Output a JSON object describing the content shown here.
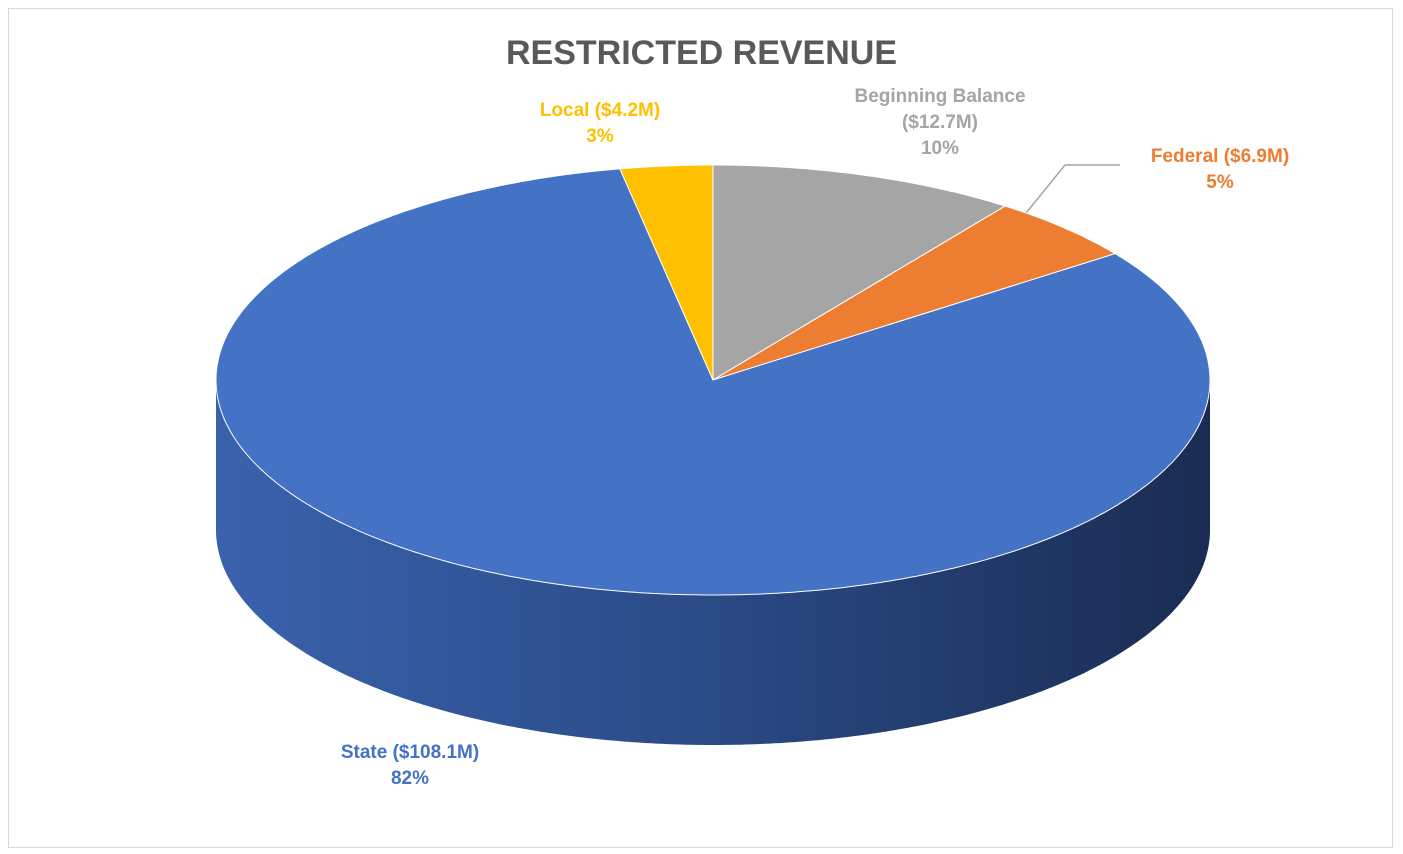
{
  "chart_data": {
    "type": "pie",
    "title": "RESTRICTED REVENUE",
    "categories": [
      "Beginning Balance ($12.7M)",
      "Federal ($6.9M)",
      "State ($108.1M)",
      "Local ($4.2M)"
    ],
    "values": [
      10,
      5,
      82,
      3
    ],
    "value_labels": [
      "10%",
      "5%",
      "82%",
      "3%"
    ],
    "colors": [
      "#a5a5a5",
      "#ed7d31",
      "#4472c4",
      "#ffc000"
    ]
  }
}
